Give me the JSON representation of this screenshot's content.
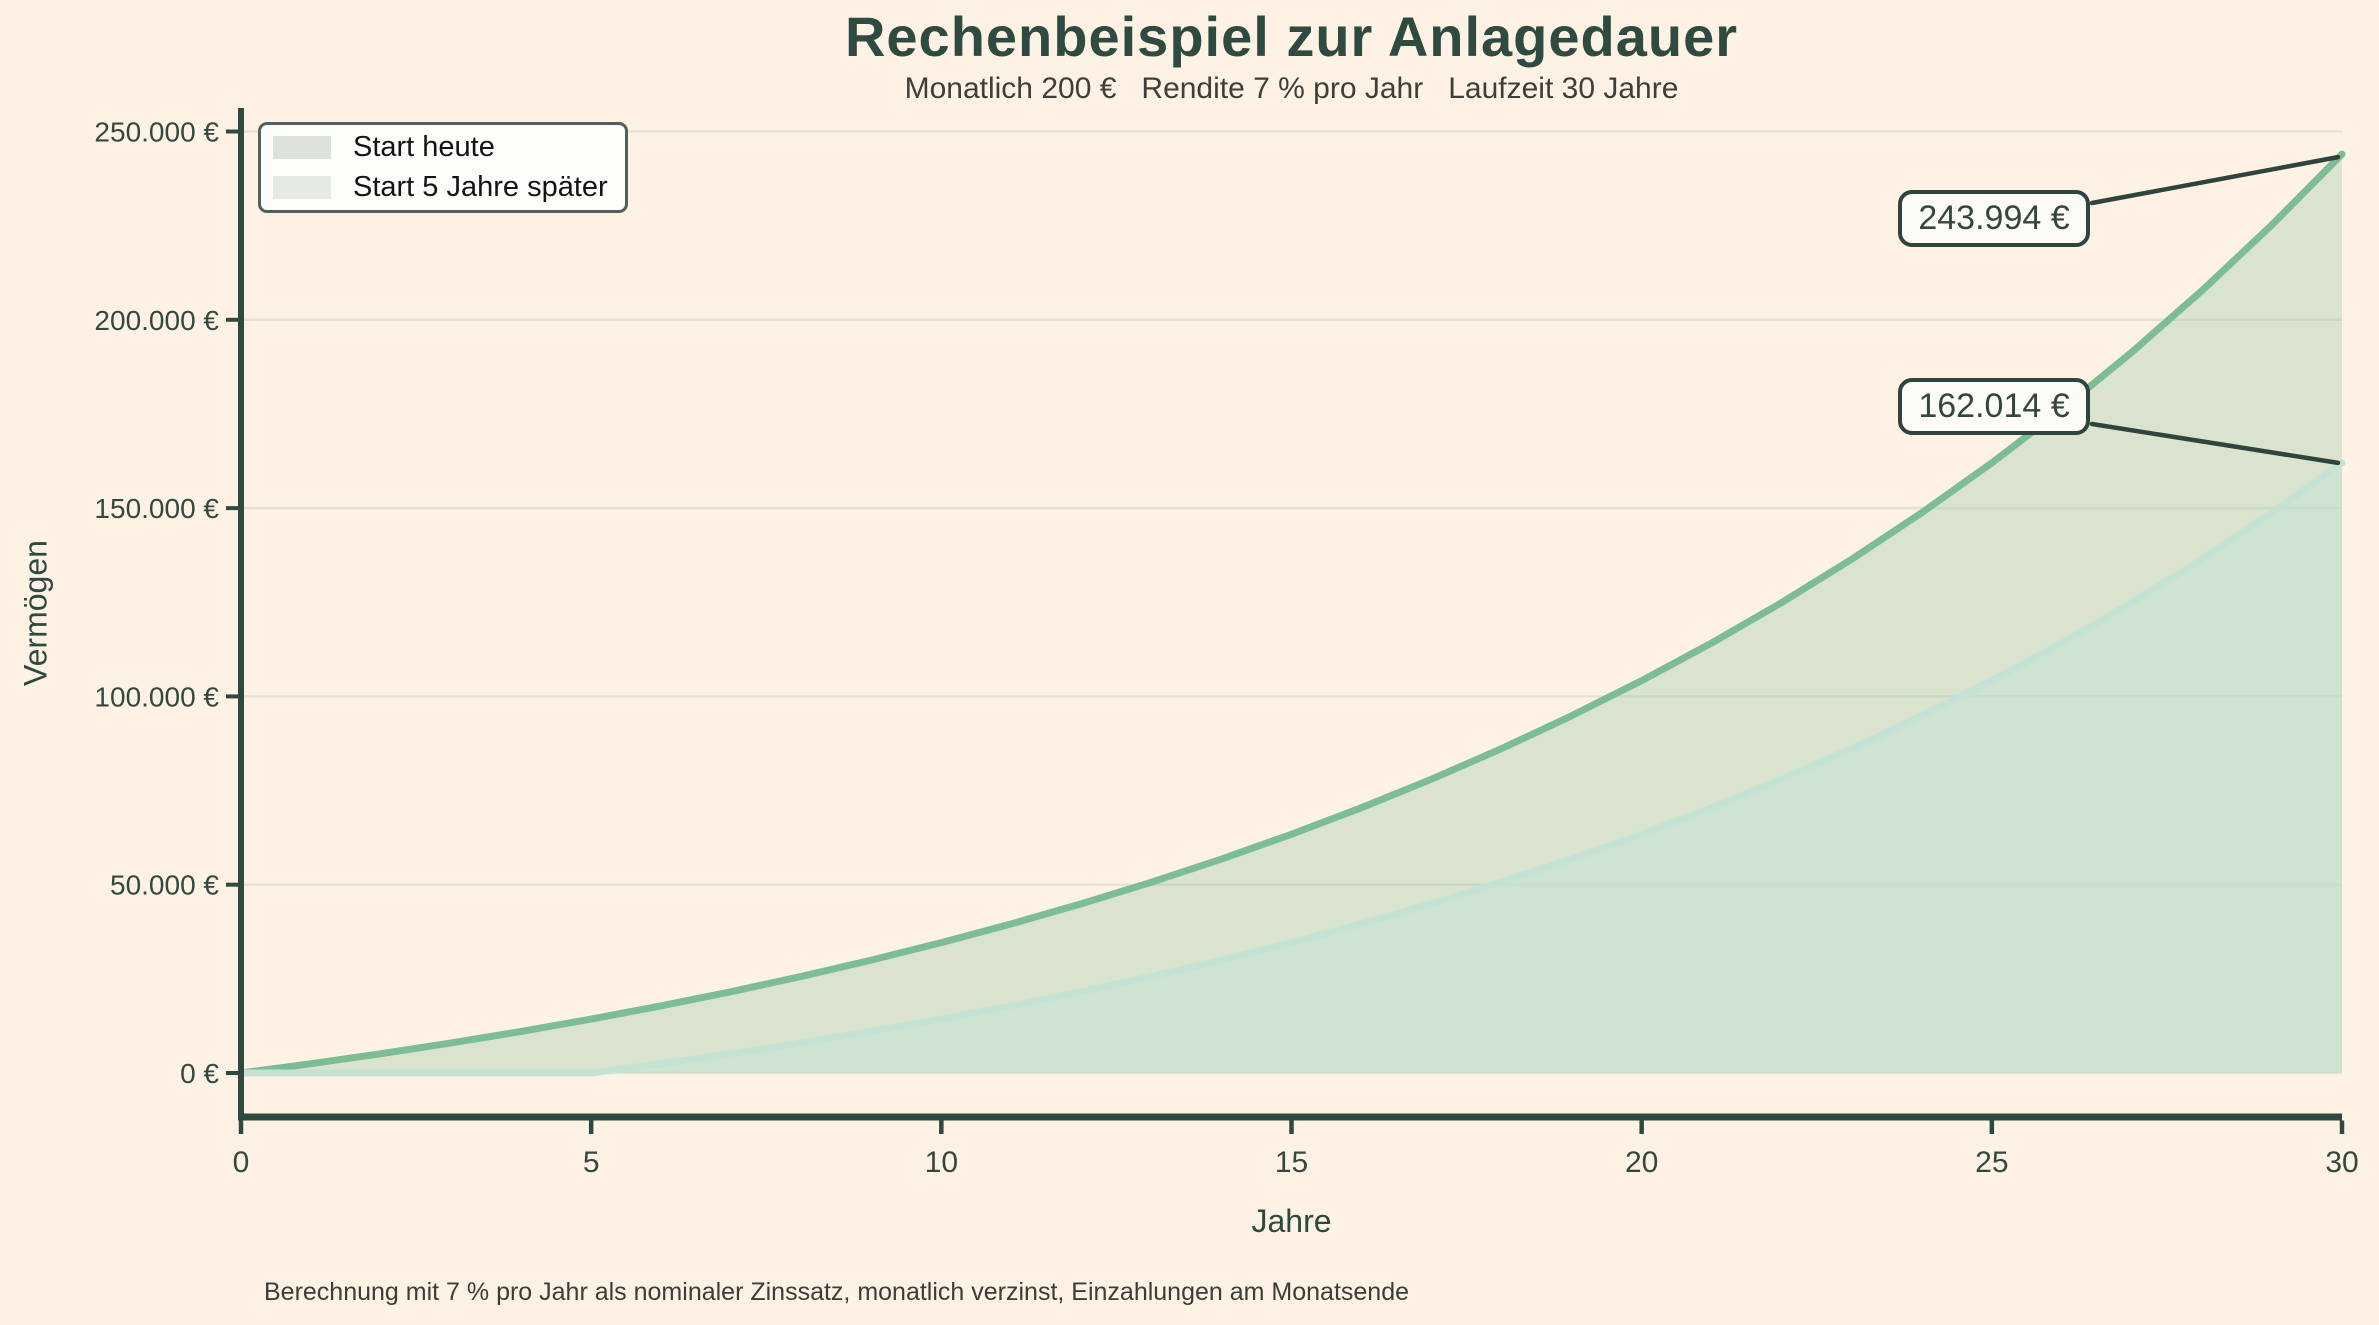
{
  "page": {
    "background": "#fdf2e4"
  },
  "chart_data": {
    "type": "area",
    "title": "Rechenbeispiel zur Anlagedauer",
    "subtitle": "Monatlich 200 €   Rendite 7 % pro Jahr   Laufzeit 30 Jahre",
    "xlabel": "Jahre",
    "ylabel": "Vermögen",
    "xlim": [
      0,
      30
    ],
    "ylim": [
      0,
      250000
    ],
    "grid": "horizontal-only",
    "legend_position": "upper-left",
    "x": [
      0,
      1,
      2,
      3,
      4,
      5,
      6,
      7,
      8,
      9,
      10,
      11,
      12,
      13,
      14,
      15,
      16,
      17,
      18,
      19,
      20,
      21,
      22,
      23,
      24,
      25,
      26,
      27,
      28,
      29,
      30
    ],
    "series": [
      {
        "name": "Start heute",
        "line_color": "#7cbd95",
        "fill_color": "rgba(124,189,149,0.27)",
        "values": [
          0,
          2479,
          5136,
          7986,
          11042,
          14319,
          17832,
          21600,
          25640,
          29972,
          34617,
          39598,
          44939,
          50666,
          56807,
          63392,
          70453,
          78024,
          86142,
          94848,
          104183,
          114193,
          124926,
          136435,
          148776,
          162014,
          176206,
          191422,
          207739,
          225235,
          243994
        ]
      },
      {
        "name": "Start 5 Jahre später",
        "line_color": "#c5e3d5",
        "fill_color": "rgba(197,227,214,0.55)",
        "values": [
          0,
          0,
          0,
          0,
          0,
          0,
          2479,
          5136,
          7986,
          11042,
          14319,
          17832,
          21600,
          25640,
          29972,
          34617,
          39598,
          44939,
          50666,
          56807,
          63392,
          70453,
          78024,
          86142,
          94848,
          104183,
          114193,
          124926,
          136435,
          148776,
          162014
        ]
      }
    ],
    "xticks": {
      "values": [
        0,
        5,
        10,
        15,
        20,
        25,
        30
      ],
      "labels": [
        "0",
        "5",
        "10",
        "15",
        "20",
        "25",
        "30"
      ]
    },
    "yticks": {
      "values": [
        0,
        50000,
        100000,
        150000,
        200000,
        250000
      ],
      "labels": [
        "0 €",
        "50.000 €",
        "100.000 €",
        "150.000 €",
        "200.000 €",
        "250.000 €"
      ]
    },
    "annotations": [
      {
        "label": "243.994 €",
        "x": 30,
        "value": 243994
      },
      {
        "label": "162.014 €",
        "x": 30,
        "value": 162014
      }
    ]
  },
  "footer": {
    "note": "Berechnung mit 7 % pro Jahr als nominaler Zinssatz, monatlich verzinst, Einzahlungen am Monatsende"
  },
  "colors": {
    "background": "#fdf2e4",
    "title_text": "#2f4a41",
    "subtitle_text": "#403e38",
    "axis_spine": "#2e4a3e",
    "tick_label": "#33493f",
    "grid_line": "#e8e2d6",
    "series1_line": "#7cbd95",
    "series2_line": "#c5e3d5",
    "annotation_border": "#2e443c",
    "annotation_bg": "#fcfbf6",
    "annotation_text": "#35463f",
    "leader_line": "#2e443c",
    "legend_border": "#51605a",
    "legend_bg": "#fdfdfa",
    "legend_text": "#141414",
    "legend_swatch1": "#dbe3da",
    "legend_swatch2": "#e4ebe4",
    "footnote_text": "#3e3c37"
  }
}
